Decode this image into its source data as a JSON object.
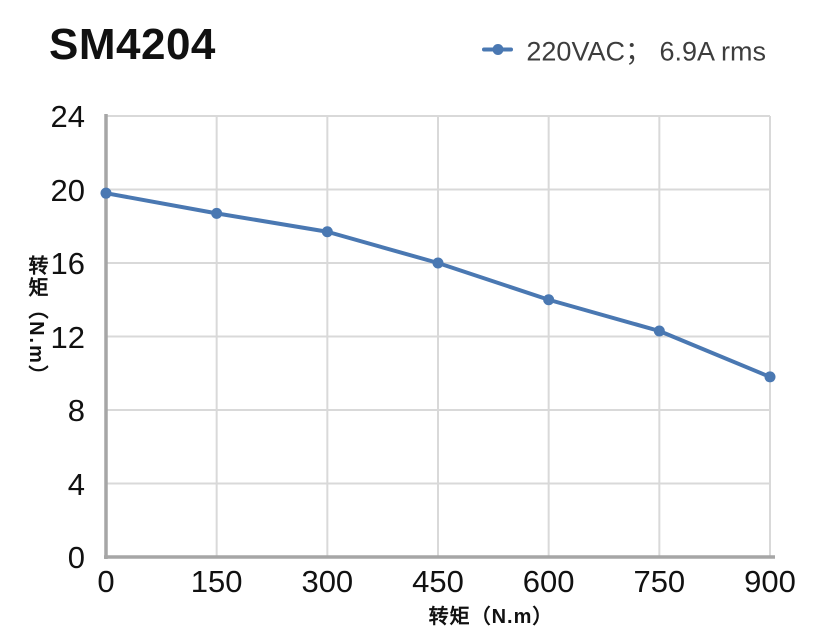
{
  "header": {
    "title": "SM4204"
  },
  "legend": {
    "items": [
      {
        "label": "220VAC； 6.9A rms",
        "marker": "line-dot-icon"
      }
    ]
  },
  "colors": {
    "background": "#ffffff",
    "accent": "#4a78b2",
    "grid": "#d9d9d9",
    "axis": "#a6a6a6",
    "tick_text": "#111111",
    "legend_text": "#3d3d3d",
    "title_text": "#111111"
  },
  "chart_data": {
    "type": "line",
    "title": "SM4204",
    "x": [
      0,
      150,
      300,
      450,
      600,
      750,
      900
    ],
    "series": [
      {
        "name": "220VAC； 6.9A rms",
        "color": "#4a78b2",
        "values": [
          19.8,
          18.7,
          17.7,
          16.0,
          14.0,
          12.3,
          9.8
        ]
      }
    ],
    "xlabel": "转矩（N.m）",
    "ylabel": "转矩（N.m）",
    "xlim": [
      0,
      900
    ],
    "xtick_step": 150,
    "ylim": [
      0,
      24
    ],
    "ytick_step": 4,
    "grid": true,
    "legend_position": "top-right",
    "marker": "circle"
  }
}
